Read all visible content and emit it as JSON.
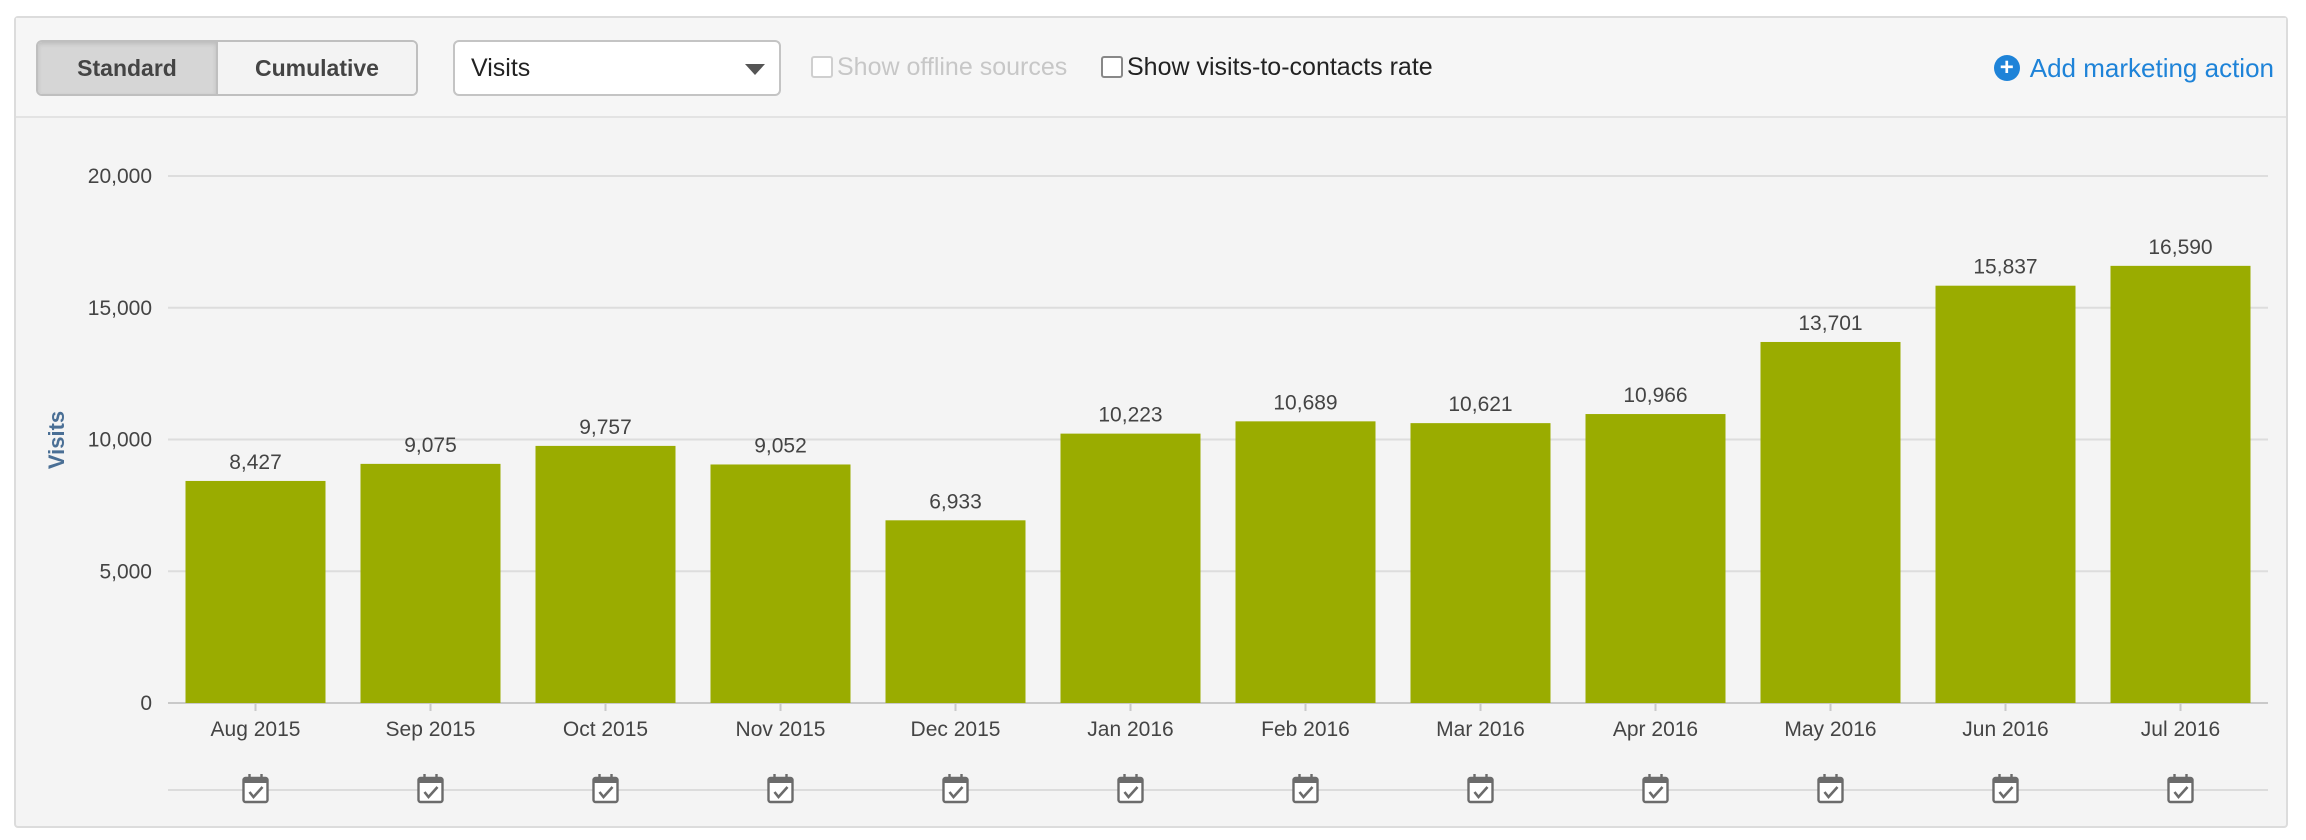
{
  "toolbar": {
    "standard_label": "Standard",
    "cumulative_label": "Cumulative",
    "metric_select_value": "Visits",
    "offline_sources_label": "Show offline sources",
    "rate_label": "Show visits-to-contacts rate",
    "add_action_label": "Add marketing action"
  },
  "colors": {
    "bar": "#9aac00",
    "link": "#1e83d8",
    "axis_title": "#4a6f95"
  },
  "chart_data": {
    "type": "bar",
    "ylabel": "Visits",
    "ylim": [
      0,
      20000
    ],
    "yticks": [
      0,
      5000,
      10000,
      15000,
      20000
    ],
    "ytick_labels": [
      "0",
      "5,000",
      "10,000",
      "15,000",
      "20,000"
    ],
    "categories": [
      "Aug 2015",
      "Sep 2015",
      "Oct 2015",
      "Nov 2015",
      "Dec 2015",
      "Jan 2016",
      "Feb 2016",
      "Mar 2016",
      "Apr 2016",
      "May 2016",
      "Jun 2016",
      "Jul 2016"
    ],
    "values": [
      8427,
      9075,
      9757,
      9052,
      6933,
      10223,
      10689,
      10621,
      10966,
      13701,
      15837,
      16590
    ],
    "value_labels": [
      "8,427",
      "9,075",
      "9,757",
      "9,052",
      "6,933",
      "10,223",
      "10,689",
      "10,621",
      "10,966",
      "13,701",
      "15,837",
      "16,590"
    ],
    "grid": true,
    "legend": "none"
  }
}
